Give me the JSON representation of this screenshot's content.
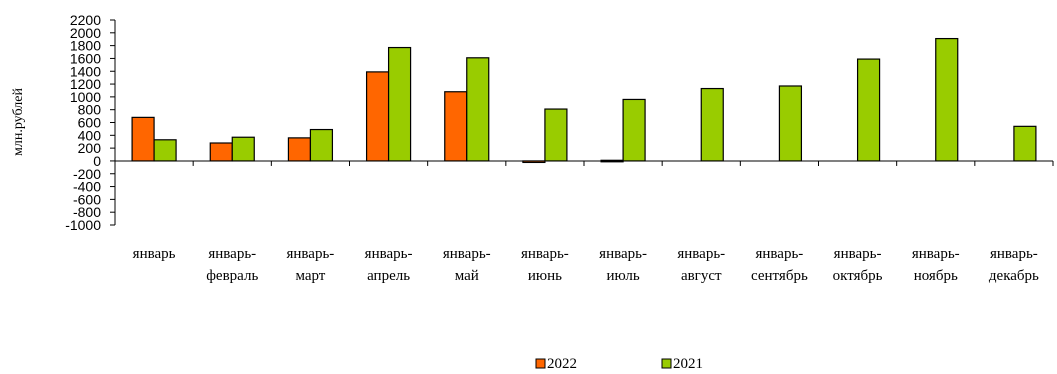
{
  "chart_data": {
    "type": "bar",
    "ylabel": "млн.рублей",
    "ylim": [
      -1000,
      2200
    ],
    "yticks": [
      2200,
      2000,
      1800,
      1600,
      1400,
      1200,
      1000,
      800,
      600,
      400,
      200,
      0,
      -200,
      -400,
      -600,
      -800,
      -1000
    ],
    "categories": [
      [
        "январь"
      ],
      [
        "январь-",
        "февраль"
      ],
      [
        "январь-",
        "март"
      ],
      [
        "январь-",
        "апрель"
      ],
      [
        "январь-",
        "май"
      ],
      [
        "январь-",
        "июнь"
      ],
      [
        "январь-",
        "июль"
      ],
      [
        "январь-",
        "август"
      ],
      [
        "январь-",
        "сентябрь"
      ],
      [
        "январь-",
        "октябрь"
      ],
      [
        "январь-",
        "ноябрь"
      ],
      [
        "январь-",
        "декабрь"
      ]
    ],
    "series": [
      {
        "name": "2022",
        "color": "#ff6600",
        "values": [
          680,
          280,
          360,
          1390,
          1080,
          -15,
          10,
          null,
          null,
          null,
          null,
          null
        ]
      },
      {
        "name": "2021",
        "color": "#99cc00",
        "values": [
          330,
          370,
          490,
          1770,
          1610,
          810,
          960,
          1130,
          1170,
          1590,
          1910,
          540
        ]
      }
    ],
    "legend_position": "bottom",
    "grid": false
  }
}
